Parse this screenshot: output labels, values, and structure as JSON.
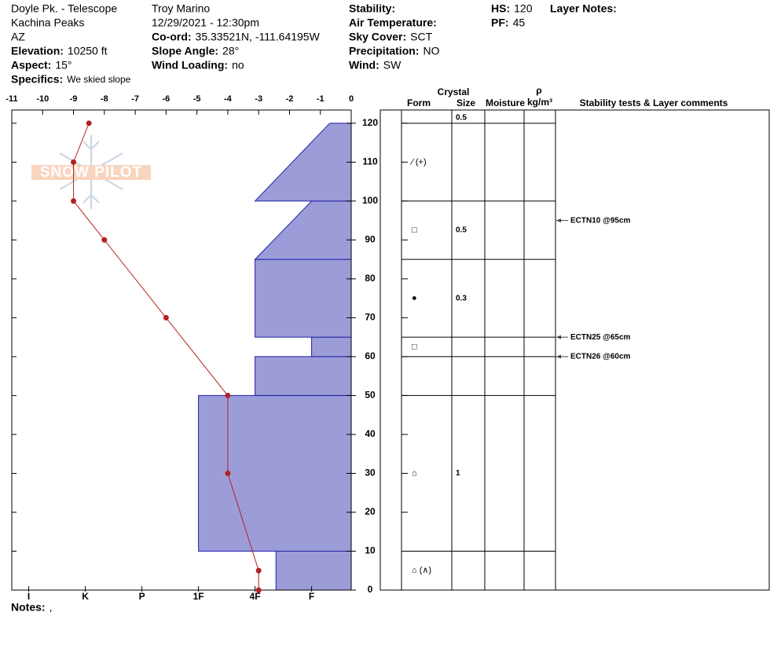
{
  "header": {
    "site": "Doyle Pk. - Telescope",
    "range": "Kachina Peaks",
    "state": "AZ",
    "elevation": {
      "label": "Elevation:",
      "value": "10250 ft"
    },
    "aspect": {
      "label": "Aspect:",
      "value": "15°"
    },
    "specifics": {
      "label": "Specifics:",
      "value": "We skied slope"
    },
    "observer": "Troy Marino",
    "datetime": "12/29/2021 - 12:30pm",
    "coord": {
      "label": "Co-ord:",
      "value": "35.33521N, -111.64195W"
    },
    "slope_angle": {
      "label": "Slope Angle:",
      "value": "28°"
    },
    "wind_loading": {
      "label": "Wind Loading:",
      "value": "no"
    },
    "stability": {
      "label": "Stability:"
    },
    "air_temperature": {
      "label": "Air Temperature:"
    },
    "sky_cover": {
      "label": "Sky Cover:",
      "value": "SCT"
    },
    "precipitation": {
      "label": "Precipitation:",
      "value": "NO"
    },
    "wind": {
      "label": "Wind:",
      "value": "SW"
    },
    "hs": {
      "label": "HS:",
      "value": 120
    },
    "pf": {
      "label": "PF:",
      "value": 45
    },
    "layer_notes": {
      "label": "Layer Notes:"
    }
  },
  "logo": {
    "text": "SNOW PILOT"
  },
  "notes": {
    "label": "Notes:",
    "value": ","
  },
  "chart_data": {
    "type": "snow-profile",
    "xlim": [
      -11,
      0
    ],
    "xticks": [
      -11,
      -10,
      -9,
      -8,
      -7,
      -6,
      -5,
      -4,
      -3,
      -2,
      -1,
      0
    ],
    "ylim": [
      0,
      123.4
    ],
    "yticks": [
      0,
      10,
      20,
      30,
      40,
      50,
      60,
      70,
      80,
      90,
      100,
      110,
      120
    ],
    "hardness_lim": [
      6.3,
      0.3
    ],
    "hardness_ticks": [
      {
        "value": 6,
        "label": "I"
      },
      {
        "value": 5,
        "label": "K"
      },
      {
        "value": 4,
        "label": "P"
      },
      {
        "value": 3,
        "label": "1F"
      },
      {
        "value": 2,
        "label": "4F"
      },
      {
        "value": 1,
        "label": "F"
      }
    ],
    "layer_color": "#9c9cd9",
    "layer_edge": "#1f1fa8",
    "layers": [
      {
        "bottom": 0,
        "top": 10,
        "hardness_bottom": 1.63,
        "hardness_top": 1.63
      },
      {
        "bottom": 10,
        "top": 50,
        "hardness_bottom": 3,
        "hardness_top": 3
      },
      {
        "bottom": 50,
        "top": 60,
        "hardness_bottom": 2,
        "hardness_top": 2
      },
      {
        "bottom": 60,
        "top": 65,
        "hardness_bottom": 1,
        "hardness_top": 1
      },
      {
        "bottom": 65,
        "top": 85,
        "hardness_bottom": 2,
        "hardness_top": 2
      },
      {
        "bottom": 85,
        "top": 100,
        "hardness_bottom": 2,
        "hardness_top": 1
      },
      {
        "bottom": 100,
        "top": 120,
        "hardness_bottom": 2,
        "hardness_top": 0.68
      }
    ],
    "temperature": {
      "color": "#b22222",
      "heights": [
        120,
        110,
        100,
        90,
        70,
        50,
        30,
        5,
        0
      ],
      "values": [
        -8.5,
        -9,
        -9,
        -8,
        -6,
        -4,
        -4,
        -3,
        -3
      ]
    }
  },
  "table": {
    "headers": {
      "crystal": "Crystal",
      "form": "Form",
      "size": "Size",
      "moisture": "Moisture",
      "rho": "ρ",
      "density_unit": "kg/m³",
      "comments": "Stability tests & Layer comments"
    },
    "rows": [
      {
        "bottom": 120,
        "size": 0.5
      },
      {
        "bottom": 100,
        "top": 120,
        "form": "∕ (+)"
      },
      {
        "bottom": 85,
        "top": 100,
        "form": "□",
        "size": 0.5
      },
      {
        "bottom": 65,
        "top": 85,
        "form": "●",
        "size": 0.3
      },
      {
        "bottom": 60,
        "top": 65,
        "form": "□"
      },
      {
        "bottom": 50,
        "top": 60
      },
      {
        "bottom": 10,
        "top": 50,
        "form": "⌂",
        "size": 1
      },
      {
        "bottom": 0,
        "top": 10,
        "form": "⌂ (∧)"
      }
    ],
    "tests": [
      {
        "height": 95,
        "label": "ECTN10 @95cm"
      },
      {
        "height": 65,
        "label": "ECTN25 @65cm"
      },
      {
        "height": 60,
        "label": "ECTN26 @60cm"
      }
    ]
  }
}
